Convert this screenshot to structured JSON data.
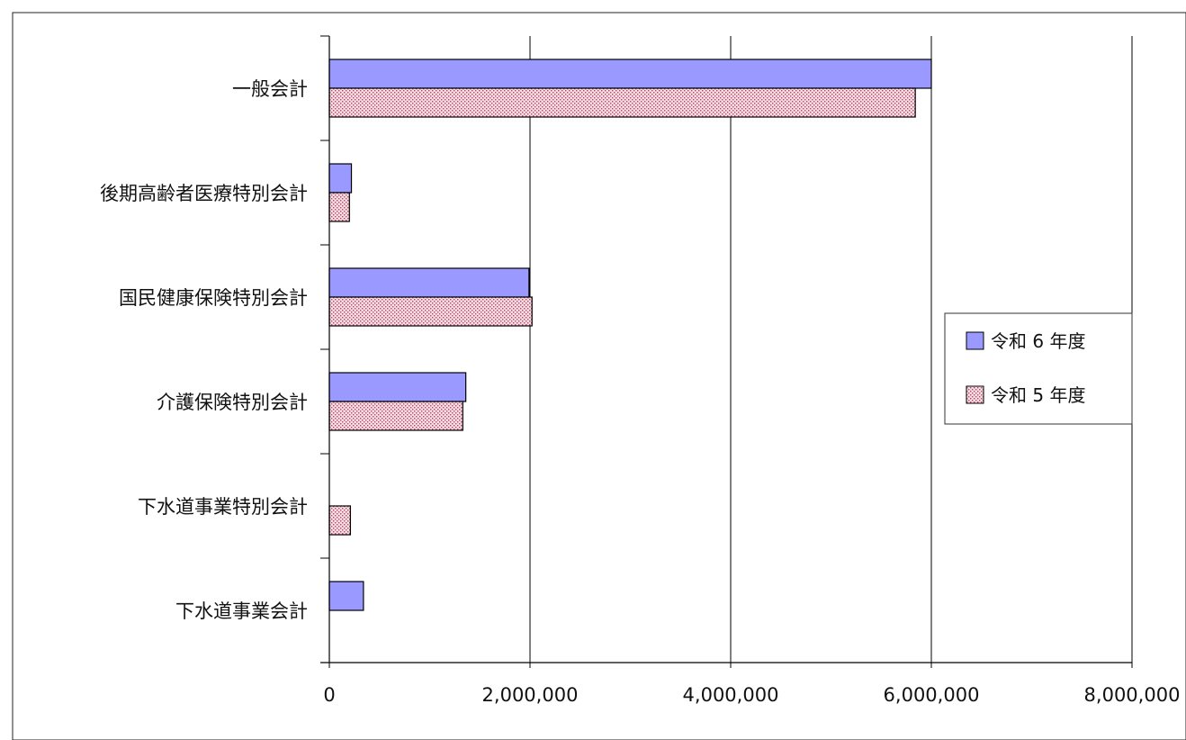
{
  "chart_data": {
    "type": "bar",
    "orientation": "horizontal",
    "categories": [
      "一般会計",
      "後期高齢者医療特別会計",
      "国民健康保険特別会計",
      "介護保険特別会計",
      "下水道事業特別会計",
      "下水道事業会計"
    ],
    "series": [
      {
        "name": "令和 6 年度",
        "color": "#9999ff",
        "values": [
          6000000,
          220000,
          1990000,
          1360000,
          null,
          340000
        ]
      },
      {
        "name": "令和 5 年度",
        "color": "#f2d3dc",
        "pattern": "dotted",
        "values": [
          5840000,
          200000,
          2020000,
          1330000,
          210000,
          null
        ]
      }
    ],
    "xlim": [
      0,
      8000000
    ],
    "xticks": [
      "0",
      "2,000,000",
      "4,000,000",
      "6,000,000",
      "8,000,000"
    ],
    "grid": true,
    "legend_position": "right"
  }
}
